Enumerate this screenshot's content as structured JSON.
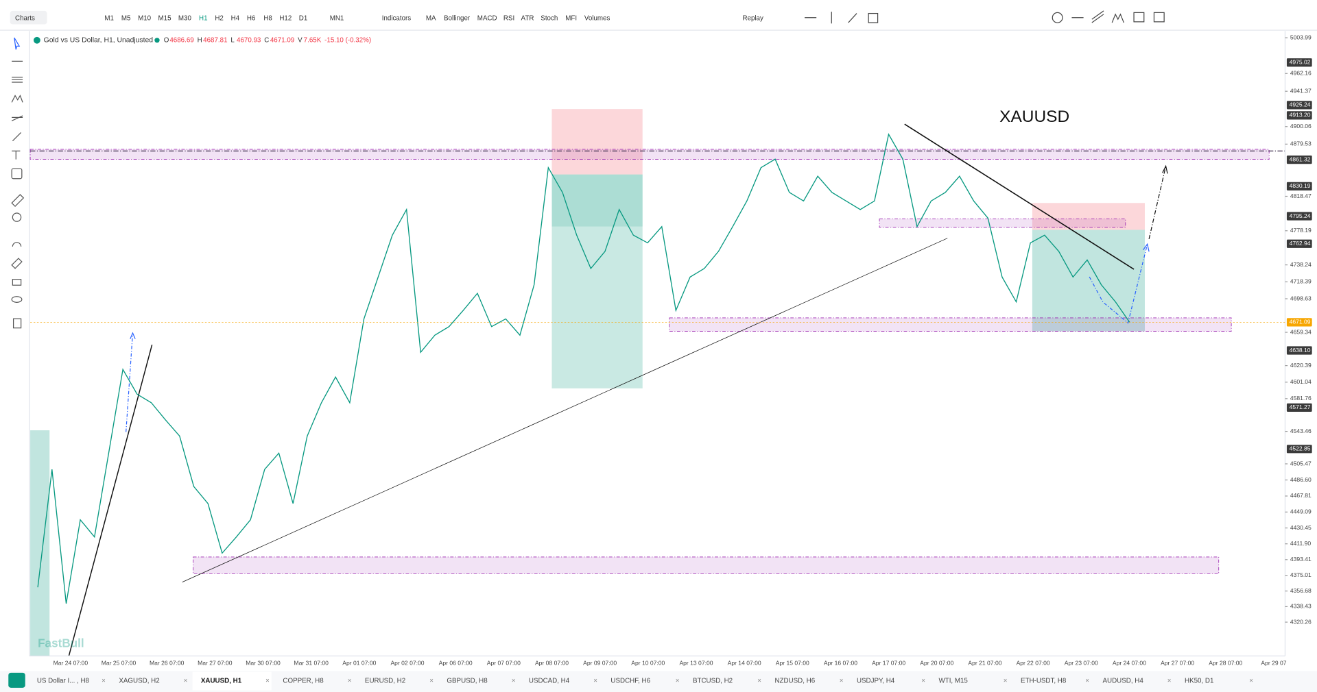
{
  "toolbar": {
    "charts": "Charts",
    "timeframes": [
      "M1",
      "M5",
      "M10",
      "M15",
      "M30",
      "H1",
      "H2",
      "H4",
      "H6",
      "H8",
      "H12",
      "D1",
      "MN1"
    ],
    "active_timeframe": "H1",
    "indicators": [
      "Indicators",
      "MA",
      "Bollinger",
      "MACD",
      "RSI",
      "ATR",
      "Stoch",
      "MFI",
      "Volumes"
    ],
    "replay": "Replay"
  },
  "legend": {
    "symbol": "Gold vs US Dollar, H1, Unadjusted",
    "ohlc": [
      {
        "label": "O",
        "value": "4686.69"
      },
      {
        "label": "H",
        "value": "4687.81"
      },
      {
        "label": "L",
        "value": "4670.93"
      },
      {
        "label": "C",
        "value": "4671.09"
      },
      {
        "label": "V",
        "value": "7.65K"
      }
    ],
    "change": "-15.10 (-0.32%)"
  },
  "annotation": "XAUUSD",
  "watermark": "FastBull",
  "price_axis": {
    "ticks": [
      5003.99,
      4962.16,
      4941.37,
      4900.06,
      4879.53,
      4818.47,
      4778.19,
      4738.24,
      4718.39,
      4698.63,
      4659.34,
      4620.39,
      4601.04,
      4581.76,
      4543.46,
      4505.47,
      {
        "value": 4486.6,
        "label": "4486.60"
      },
      4467.81,
      4449.09,
      4430.45,
      {
        "value": 4411.9,
        "label": "4411.90"
      },
      4393.41,
      4375.01,
      4356.68,
      4338.43,
      4320.26
    ],
    "badges": [
      4975.02,
      4925.24,
      {
        "value": 4913.2,
        "label": "4913.20"
      },
      4861.32,
      4830.19,
      4795.24,
      4762.94,
      {
        "value": 4638.1,
        "label": "4638.10"
      },
      4571.27,
      4522.85
    ],
    "current": 4671.09
  },
  "price": {
    "color": "#089981",
    "closes": [
      4361,
      4499,
      4342,
      4440,
      4420,
      4518,
      4616,
      4587,
      4577,
      4557,
      4538,
      4479,
      4459,
      4401,
      4420,
      4440,
      4499,
      4518,
      4459,
      4538,
      4577,
      4607,
      4577,
      4675,
      4724,
      4773,
      4803,
      4636,
      4656,
      4666,
      4685,
      4705,
      4666,
      4675,
      4656,
      4715,
      4852,
      4823,
      4773,
      4734,
      4754,
      4803,
      4773,
      4764,
      4783,
      4685,
      4724,
      4734,
      4754,
      4783,
      4813,
      4852,
      4862,
      4823,
      4813,
      4842,
      4823,
      4813,
      4803,
      4813,
      4891,
      4862,
      4783,
      4813,
      4823,
      4842,
      4813,
      4793,
      4724,
      4695,
      4764,
      4773,
      4754,
      4724,
      4744,
      4715,
      4695,
      4671
    ]
  },
  "time_axis": [
    "Mar 24 07:00",
    "Mar 25 07:00",
    "Mar 26 07:00",
    "Mar 27 07:00",
    "Mar 30 07:00",
    "Mar 31 07:00",
    "Apr 01 07:00",
    "Apr 02 07:00",
    "Apr 06 07:00",
    "Apr 07 07:00",
    "Apr 08 07:00",
    "Apr 09 07:00",
    "Apr 10 07:00",
    "Apr 13 07:00",
    "Apr 14 07:00",
    "Apr 15 07:00",
    "Apr 16 07:00",
    "Apr 17 07:00",
    "Apr 20 07:00",
    "Apr 21 07:00",
    "Apr 22 07:00",
    "Apr 23 07:00",
    "Apr 24 07:00",
    "Apr 27 07:00",
    "Apr 28 07:00",
    "Apr 29 07"
  ],
  "tabs": [
    "US Dollar I... , H8",
    "XAGUSD, H2",
    "XAUUSD, H1",
    "COPPER, H8",
    "EURUSD, H2",
    "GBPUSD, H8",
    "USDCAD, H4",
    "USDCHF, H6",
    "BTCUSD, H2",
    "NZDUSD, H6",
    "USDJPY, H4",
    "WTI, M15",
    "ETH-USDT, H8",
    "AUDUSD, H4",
    "HK50, D1"
  ],
  "active_tab": "XAUUSD, H1"
}
